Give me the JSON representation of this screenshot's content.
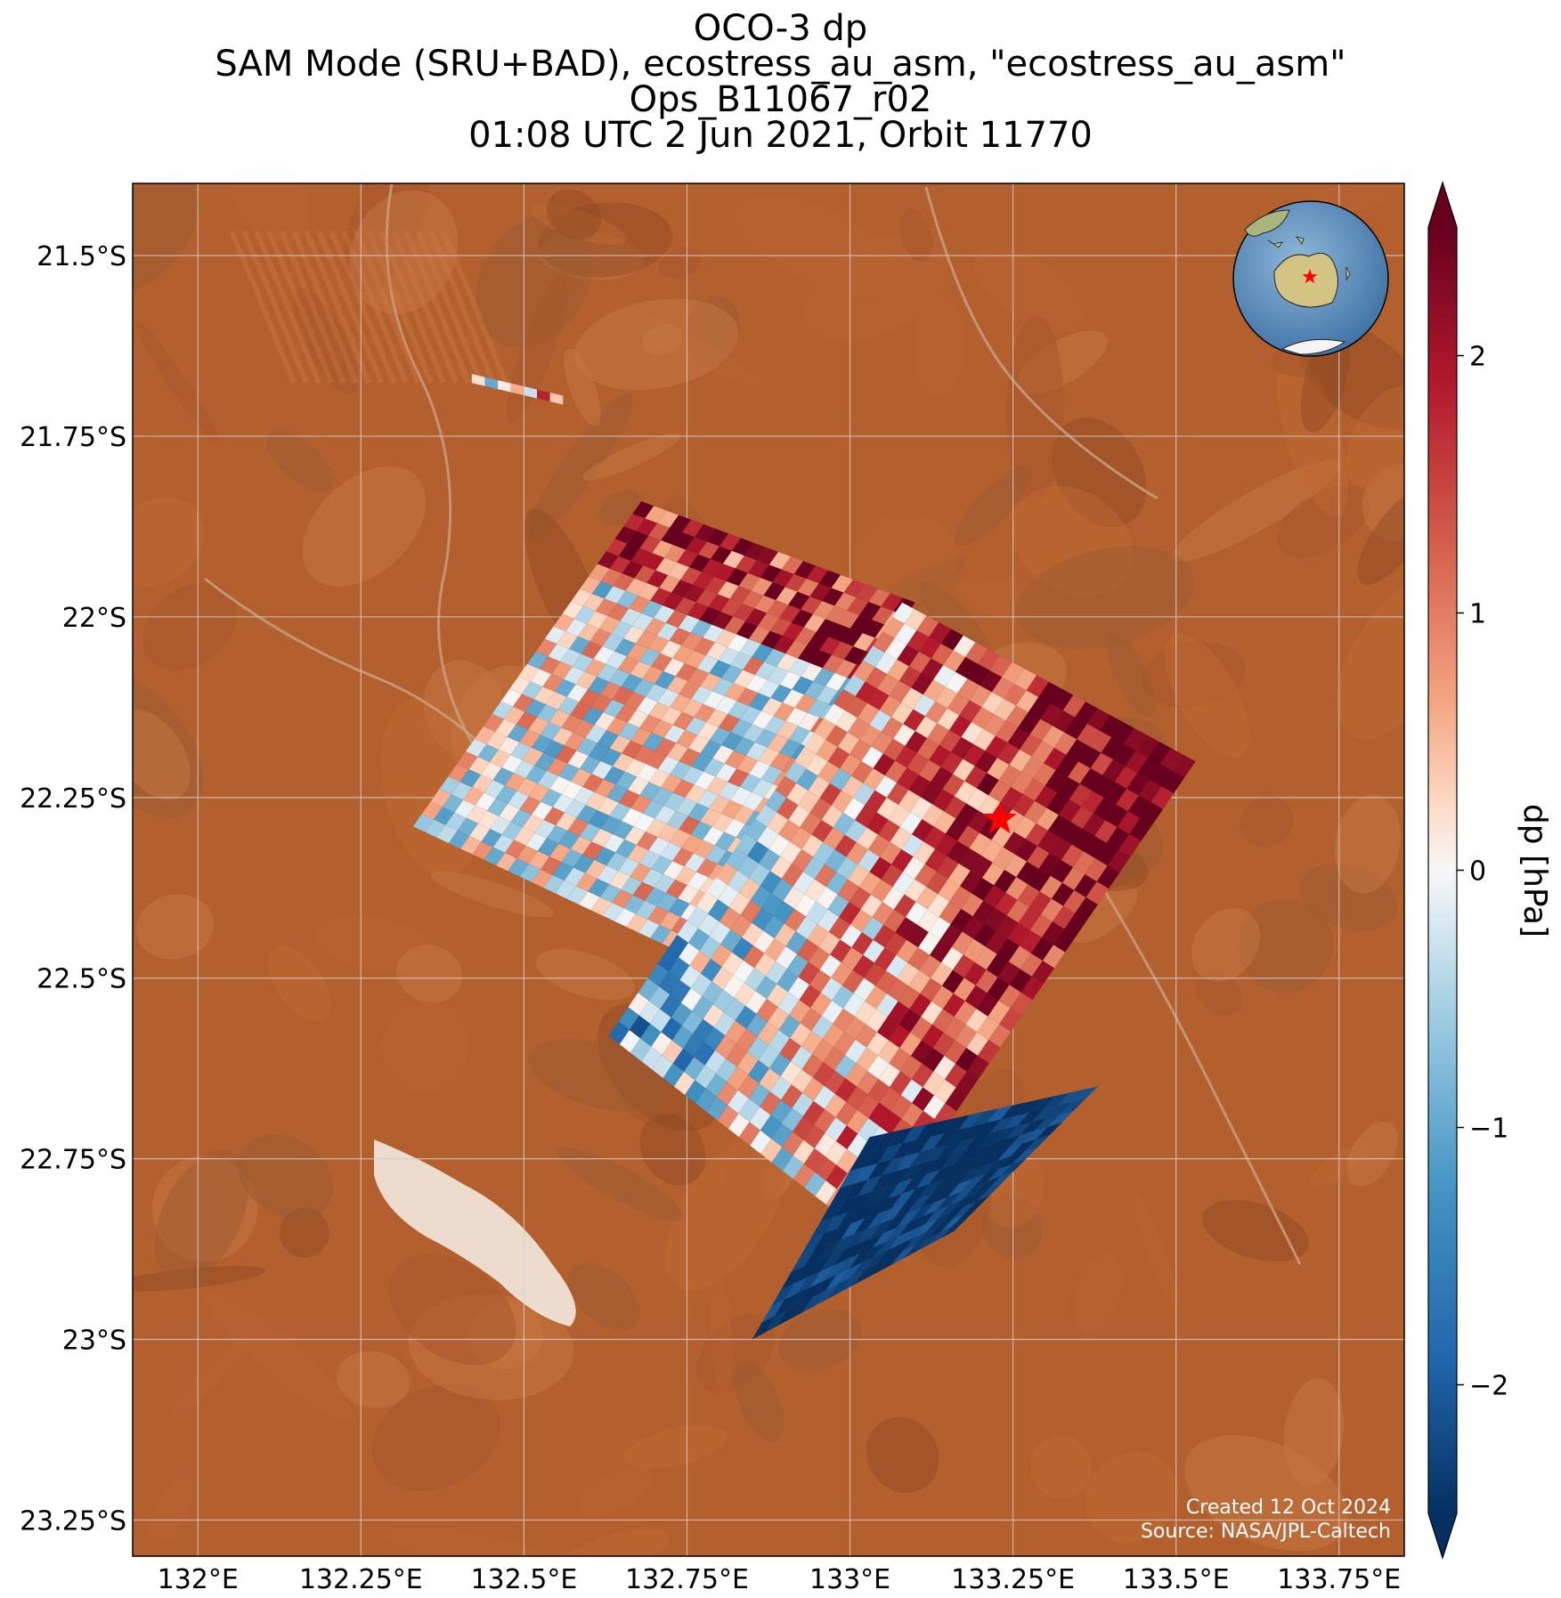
{
  "title": {
    "line1": "OCO-3 dp",
    "line2": "SAM Mode (SRU+BAD), ecostress_au_asm, \"ecostress_au_asm\"",
    "line3": "Ops_B11067_r02",
    "line4": "01:08 UTC 2 Jun 2021, Orbit 11770"
  },
  "map": {
    "lon_range": [
      131.9,
      133.85
    ],
    "lat_range": [
      -23.3,
      -21.4
    ],
    "lon_ticks": [
      {
        "value": 132.0,
        "label": "132°E"
      },
      {
        "value": 132.25,
        "label": "132.25°E"
      },
      {
        "value": 132.5,
        "label": "132.5°E"
      },
      {
        "value": 132.75,
        "label": "132.75°E"
      },
      {
        "value": 133.0,
        "label": "133°E"
      },
      {
        "value": 133.25,
        "label": "133.25°E"
      },
      {
        "value": 133.5,
        "label": "133.5°E"
      },
      {
        "value": 133.75,
        "label": "133.75°E"
      }
    ],
    "lat_ticks": [
      {
        "value": -21.5,
        "label": "21.5°S"
      },
      {
        "value": -21.75,
        "label": "21.75°S"
      },
      {
        "value": -22.0,
        "label": "22°S"
      },
      {
        "value": -22.25,
        "label": "22.25°S"
      },
      {
        "value": -22.5,
        "label": "22.5°S"
      },
      {
        "value": -22.75,
        "label": "22.75°S"
      },
      {
        "value": -23.0,
        "label": "23°S"
      },
      {
        "value": -23.25,
        "label": "23.25°S"
      }
    ],
    "target_marker": {
      "lon": 133.23,
      "lat": -22.28,
      "color": "#ff0000",
      "icon": "star-icon"
    },
    "background": {
      "land_color": "#b4602e",
      "salt_lake_color": "#f2e6dc"
    },
    "credit": {
      "line1": "Created 12 Oct 2024",
      "line2": "Source: NASA/JPL-Caltech"
    },
    "inset_globe": {
      "ocean_color": "#5d8fbf",
      "land_color": "#d4c483",
      "icon": "globe-icon"
    }
  },
  "colorbar": {
    "label": "dp [hPa]",
    "range": [
      -2.5,
      2.5
    ],
    "extend": "both",
    "colormap": "RdBu_r",
    "ticks": [
      {
        "value": 2,
        "label": "2"
      },
      {
        "value": 1,
        "label": "1"
      },
      {
        "value": 0,
        "label": "0"
      },
      {
        "value": -1,
        "label": "−1"
      },
      {
        "value": -2,
        "label": "−2"
      }
    ],
    "colors": {
      "low": "#053061",
      "mid": "#f7f7f7",
      "high": "#67001f"
    }
  },
  "chart_data": {
    "type": "heatmap",
    "variable": "dp",
    "units": "hPa",
    "vmin": -2.5,
    "vmax": 2.5,
    "swaths": [
      {
        "name_hint": "northern swath",
        "corners_lonlat": [
          [
            132.33,
            -22.29
          ],
          [
            132.68,
            -21.84
          ],
          [
            133.1,
            -21.98
          ],
          [
            132.73,
            -22.46
          ]
        ],
        "rows": 26,
        "cols": 22,
        "value_seed": 11,
        "typical_dp": 0.0
      },
      {
        "name_hint": "southern swath",
        "corners_lonlat": [
          [
            132.63,
            -22.58
          ],
          [
            133.08,
            -21.98
          ],
          [
            133.53,
            -22.2
          ],
          [
            133.03,
            -22.86
          ]
        ],
        "rows": 30,
        "cols": 24,
        "value_seed": 29,
        "typical_dp": 0.8
      },
      {
        "name_hint": "southern swath tail",
        "corners_lonlat": [
          [
            132.85,
            -23.0
          ],
          [
            133.03,
            -22.72
          ],
          [
            133.38,
            -22.65
          ],
          [
            133.16,
            -22.85
          ]
        ],
        "rows": 12,
        "cols": 16,
        "value_seed": 47,
        "typical_dp": -2.4
      }
    ],
    "small_strip": {
      "corners_lonlat": [
        [
          132.42,
          -21.67
        ],
        [
          132.56,
          -21.7
        ]
      ],
      "values": [
        0.2,
        -1.0,
        0.1,
        0.6,
        -0.3,
        1.8,
        0.4
      ]
    }
  }
}
